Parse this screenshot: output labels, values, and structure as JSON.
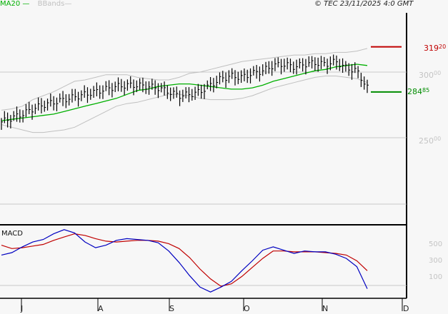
{
  "header": {
    "legend_ma": "MA20",
    "legend_bb": "BBands",
    "copyright": "© TEC 23/11/2025 4:0 GMT"
  },
  "chart_data": [
    {
      "type": "ohlc",
      "title": "Price (daily bars) with MA20 and Bollinger Bands",
      "x_ticks": [
        "J",
        "A",
        "S",
        "O",
        "N",
        "D"
      ],
      "y_ticks": [
        {
          "value": 300,
          "label": "300",
          "decimals": "00"
        },
        {
          "value": 250,
          "label": "250",
          "decimals": "00"
        }
      ],
      "ylim": [
        232,
        322
      ],
      "resistance": {
        "value": 319.2,
        "label": "319",
        "decimals": "20",
        "color": "#c00000"
      },
      "support": {
        "value": 284.85,
        "label": "284",
        "decimals": "85",
        "color": "#008c00"
      },
      "series": [
        {
          "name": "MA20",
          "color": "#00b000",
          "values": [
            263,
            264,
            265,
            266,
            267,
            268,
            270,
            272,
            274,
            276,
            278,
            280,
            283,
            286,
            287,
            289,
            290,
            291,
            291,
            290,
            289,
            288,
            287,
            287,
            288,
            290,
            293,
            295,
            297,
            299,
            301,
            302,
            304,
            305,
            306,
            305
          ]
        },
        {
          "name": "BBands upper",
          "color": "#c0c0c0",
          "values": [
            271,
            272,
            274,
            279,
            282,
            285,
            289,
            293,
            294,
            296,
            298,
            298,
            298,
            296,
            295,
            294,
            294,
            296,
            299,
            300,
            302,
            304,
            306,
            308,
            309,
            310,
            311,
            312,
            313,
            313,
            314,
            314,
            315,
            315,
            316,
            318
          ]
        },
        {
          "name": "BBands lower",
          "color": "#c0c0c0",
          "values": [
            260,
            258,
            256,
            254,
            254,
            255,
            256,
            258,
            262,
            266,
            270,
            274,
            276,
            277,
            279,
            281,
            283,
            283,
            282,
            280,
            279,
            279,
            279,
            280,
            282,
            285,
            288,
            290,
            292,
            294,
            296,
            297,
            297,
            296,
            295,
            292
          ]
        },
        {
          "name": "Close",
          "color": "#000000",
          "values": [
            262,
            265,
            268,
            272,
            275,
            277,
            279,
            281,
            283,
            285,
            287,
            289,
            290,
            290,
            289,
            288,
            285,
            282,
            283,
            285,
            290,
            295,
            297,
            296,
            299,
            301,
            305,
            306,
            304,
            306,
            307,
            306,
            308,
            303,
            301,
            288
          ]
        }
      ],
      "bar_count": 36
    },
    {
      "type": "line",
      "title": "MACD",
      "y_ticks": [
        500,
        300,
        100
      ],
      "ylim": [
        -150,
        750
      ],
      "series": [
        {
          "name": "MACD",
          "color": "#0000c0",
          "values": [
            370,
            400,
            470,
            530,
            560,
            630,
            680,
            640,
            530,
            460,
            490,
            550,
            570,
            560,
            550,
            520,
            420,
            280,
            120,
            -20,
            -80,
            -20,
            50,
            180,
            300,
            430,
            470,
            430,
            390,
            420,
            410,
            410,
            380,
            330,
            230,
            -40
          ]
        },
        {
          "name": "Signal",
          "color": "#c00000",
          "values": [
            490,
            450,
            460,
            480,
            500,
            550,
            590,
            630,
            610,
            570,
            540,
            530,
            540,
            550,
            550,
            540,
            510,
            450,
            340,
            200,
            80,
            -10,
            20,
            110,
            220,
            330,
            420,
            420,
            410,
            410,
            410,
            400,
            390,
            370,
            300,
            180
          ]
        }
      ]
    }
  ],
  "macd_panel": {
    "title": "MACD"
  }
}
